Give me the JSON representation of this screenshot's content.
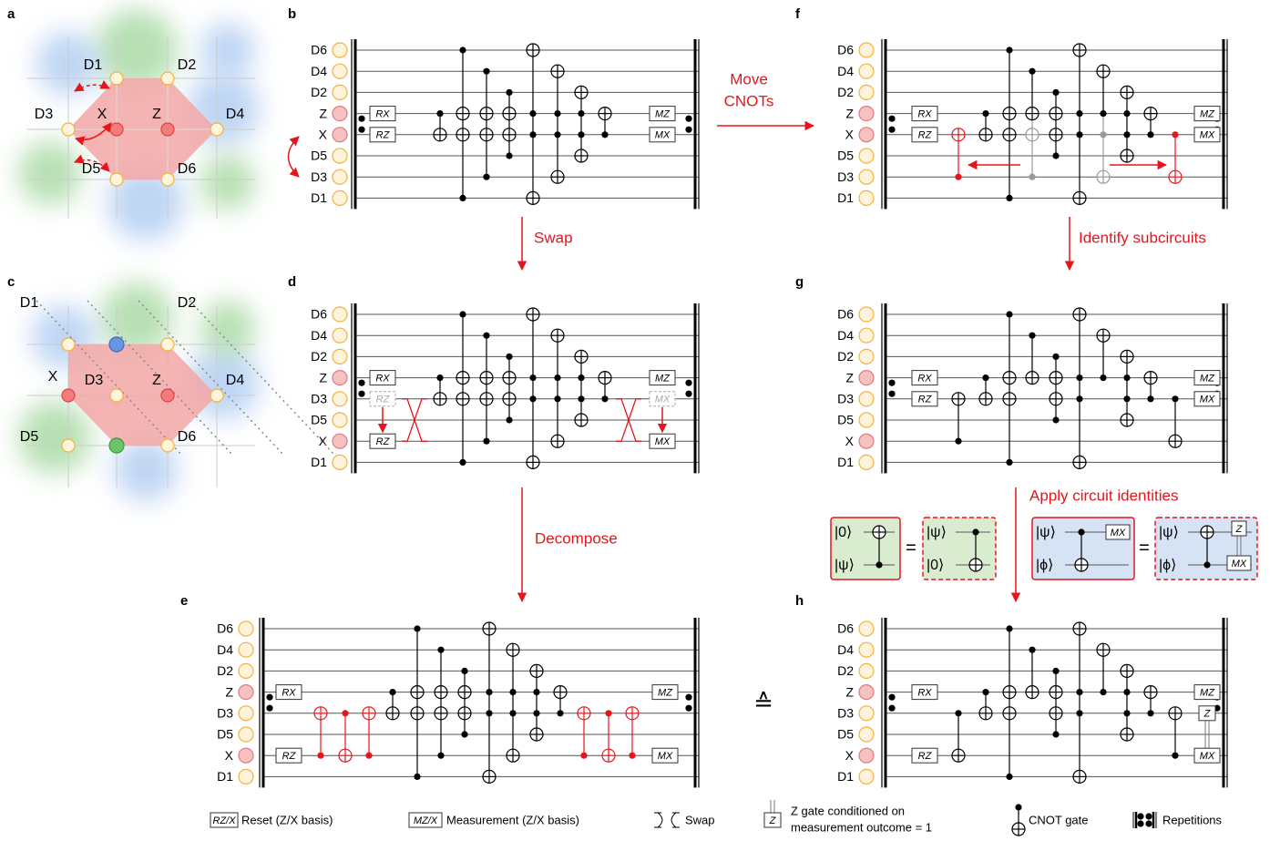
{
  "panels": {
    "a": {
      "letter": "a",
      "labels": [
        "D1",
        "D2",
        "D3",
        "X",
        "Z",
        "D4",
        "D5",
        "D6"
      ]
    },
    "b": {
      "letter": "b",
      "qubits": [
        "D6",
        "D4",
        "D2",
        "Z",
        "X",
        "D5",
        "D3",
        "D1"
      ],
      "gates": [
        "RX",
        "RZ",
        "MZ",
        "MX"
      ]
    },
    "c": {
      "letter": "c",
      "labels": [
        "D1",
        "D2",
        "X",
        "D3",
        "Z",
        "D4",
        "D5",
        "D6"
      ]
    },
    "d": {
      "letter": "d",
      "qubits": [
        "D6",
        "D4",
        "D2",
        "Z",
        "D3",
        "D5",
        "X",
        "D1"
      ],
      "gates": [
        "RX",
        "RZ",
        "RZ",
        "MZ",
        "MX",
        "MX"
      ]
    },
    "e": {
      "letter": "e",
      "qubits": [
        "D6",
        "D4",
        "D2",
        "Z",
        "D3",
        "D5",
        "X",
        "D1"
      ],
      "gates": [
        "RX",
        "RZ",
        "MZ",
        "MX"
      ]
    },
    "f": {
      "letter": "f",
      "qubits": [
        "D6",
        "D4",
        "D2",
        "Z",
        "X",
        "D5",
        "D3",
        "D1"
      ],
      "gates": [
        "RX",
        "RZ",
        "MZ",
        "MX"
      ]
    },
    "g": {
      "letter": "g",
      "qubits": [
        "D6",
        "D4",
        "D2",
        "Z",
        "D3",
        "D5",
        "X",
        "D1"
      ],
      "gates": [
        "RX",
        "RZ",
        "MZ",
        "MX"
      ]
    },
    "h": {
      "letter": "h",
      "qubits": [
        "D6",
        "D4",
        "D2",
        "Z",
        "D3",
        "D5",
        "X",
        "D1"
      ],
      "gates": [
        "RX",
        "RZ",
        "MZ",
        "Z",
        "MX"
      ]
    }
  },
  "arrows": {
    "move": [
      "Move",
      "CNOTs"
    ],
    "swap": "Swap",
    "identify": "Identify subcircuits",
    "decompose": "Decompose",
    "apply": "Apply circuit identities",
    "equiv": "≙"
  },
  "identities": {
    "equals": "=",
    "boxes": [
      {
        "kets": [
          "|0⟩",
          "|ψ⟩"
        ]
      },
      {
        "kets": [
          "|ψ⟩",
          "|0⟩"
        ]
      },
      {
        "kets": [
          "|ψ⟩",
          "|ϕ⟩"
        ],
        "gates": [
          "MX"
        ]
      },
      {
        "kets": [
          "|ψ⟩",
          "|ϕ⟩"
        ],
        "gates": [
          "Z",
          "MX"
        ]
      }
    ]
  },
  "legend": [
    {
      "icon": "RZ/X",
      "text": "Reset (Z/X basis)"
    },
    {
      "icon": "MZ/X",
      "text": "Measurement (Z/X basis)"
    },
    {
      "text": "Swap"
    },
    {
      "icon": "Z",
      "text": [
        "Z gate conditioned on",
        "measurement outcome = 1"
      ]
    },
    {
      "text": "CNOT gate"
    },
    {
      "text": "Repetitions"
    }
  ]
}
